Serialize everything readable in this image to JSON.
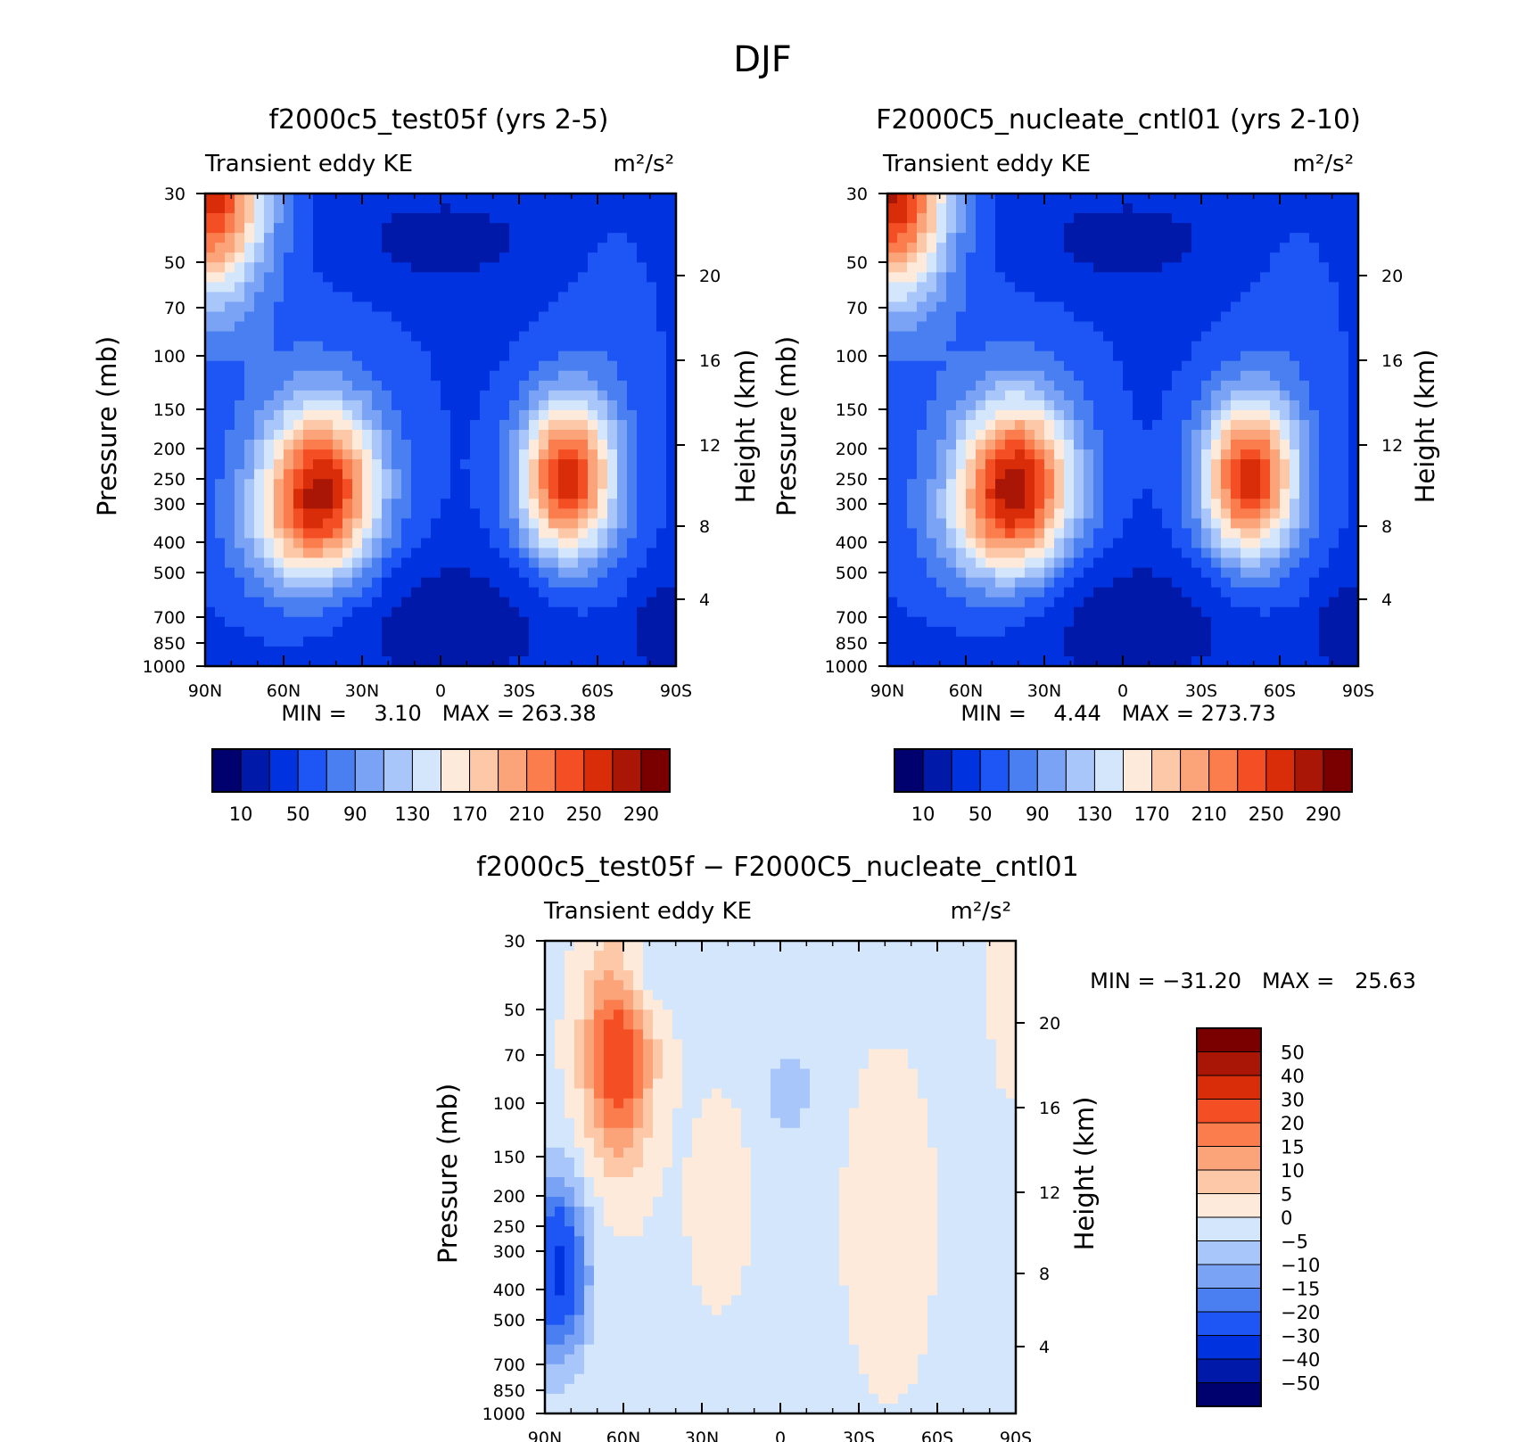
{
  "figure": {
    "title": "DJF",
    "palette_abs": [
      "#00006e",
      "#0019a8",
      "#0032e0",
      "#1e55f5",
      "#4a7ff2",
      "#7aa3f5",
      "#a9c6fb",
      "#d4e6fb",
      "#feeada",
      "#fdc8a8",
      "#fca479",
      "#fb7c4d",
      "#f44f24",
      "#d92c08",
      "#a91605",
      "#7a0000"
    ],
    "palette_diff": [
      "#00006e",
      "#0019a8",
      "#0032e0",
      "#1e55f5",
      "#4a7ff2",
      "#7aa3f5",
      "#a9c6fb",
      "#d4e6fb",
      "#feeada",
      "#fdc8a8",
      "#fca479",
      "#fb7c4d",
      "#f44f24",
      "#d92c08",
      "#a91605",
      "#7a0000"
    ]
  },
  "chart_data": [
    {
      "type": "heatmap",
      "title": "f2000c5_test05f (yrs 2-5)",
      "left_string": "Transient eddy KE",
      "units": "m²/s²",
      "ylabel": "Pressure (mb)",
      "y2label": "Height (km)",
      "x_ticks": [
        "90N",
        "60N",
        "30N",
        "0",
        "30S",
        "60S",
        "90S"
      ],
      "y_ticks": [
        "30",
        "50",
        "70",
        "100",
        "150",
        "200",
        "250",
        "300",
        "400",
        "500",
        "700",
        "850",
        "1000"
      ],
      "y2_ticks": [
        "20",
        "16",
        "12",
        "8",
        "4"
      ],
      "min_text": "MIN =    3.10   MAX = 263.38",
      "min": 3.1,
      "max": 263.38,
      "colorbar_labels": [
        "10",
        "50",
        "90",
        "130",
        "170",
        "210",
        "250",
        "290"
      ],
      "levels": [
        10,
        30,
        50,
        70,
        90,
        110,
        130,
        150,
        170,
        190,
        210,
        230,
        250,
        270,
        290
      ],
      "features": [
        {
          "kind": "strat_max_nh",
          "lat": 87,
          "p": 30,
          "value": 255
        },
        {
          "kind": "jet_max_nh",
          "lat": 45,
          "p": 270,
          "value": 250
        },
        {
          "kind": "jet_max_sh",
          "lat": -48,
          "p": 250,
          "value": 260
        },
        {
          "kind": "min_tropics",
          "lat": 0,
          "p": 850,
          "value": 5
        }
      ]
    },
    {
      "type": "heatmap",
      "title": "F2000C5_nucleate_cntl01 (yrs 2-10)",
      "left_string": "Transient eddy KE",
      "units": "m²/s²",
      "ylabel": "Pressure (mb)",
      "y2label": "Height (km)",
      "x_ticks": [
        "90N",
        "60N",
        "30N",
        "0",
        "30S",
        "60S",
        "90S"
      ],
      "y_ticks": [
        "30",
        "50",
        "70",
        "100",
        "150",
        "200",
        "250",
        "300",
        "400",
        "500",
        "700",
        "850",
        "1000"
      ],
      "y2_ticks": [
        "20",
        "16",
        "12",
        "8",
        "4"
      ],
      "min_text": "MIN =    4.44   MAX = 273.73",
      "min": 4.44,
      "max": 273.73,
      "colorbar_labels": [
        "10",
        "50",
        "90",
        "130",
        "170",
        "210",
        "250",
        "290"
      ],
      "levels": [
        10,
        30,
        50,
        70,
        90,
        110,
        130,
        150,
        170,
        190,
        210,
        230,
        250,
        270,
        290
      ],
      "features": [
        {
          "kind": "strat_max_nh",
          "lat": 87,
          "p": 30,
          "value": 265
        },
        {
          "kind": "jet_max_nh",
          "lat": 40,
          "p": 260,
          "value": 255
        },
        {
          "kind": "jet_max_sh",
          "lat": -48,
          "p": 250,
          "value": 260
        },
        {
          "kind": "min_tropics",
          "lat": 0,
          "p": 850,
          "value": 5
        }
      ]
    },
    {
      "type": "heatmap",
      "title": "f2000c5_test05f − F2000C5_nucleate_cntl01",
      "left_string": "Transient eddy KE",
      "units": "m²/s²",
      "ylabel": "Pressure (mb)",
      "y2label": "Height (km)",
      "x_ticks": [
        "90N",
        "60N",
        "30N",
        "0",
        "30S",
        "60S",
        "90S"
      ],
      "y_ticks": [
        "30",
        "50",
        "70",
        "100",
        "150",
        "200",
        "250",
        "300",
        "400",
        "500",
        "700",
        "850",
        "1000"
      ],
      "y2_ticks": [
        "20",
        "16",
        "12",
        "8",
        "4"
      ],
      "min_text": "MIN = −31.20   MAX =   25.63",
      "min": -31.2,
      "max": 25.63,
      "colorbar_labels": [
        "50",
        "40",
        "30",
        "20",
        "15",
        "10",
        "5",
        "0",
        "−5",
        "−10",
        "−15",
        "−20",
        "−30",
        "−40",
        "−50"
      ],
      "levels": [
        -50,
        -40,
        -30,
        -20,
        -15,
        -10,
        -5,
        0,
        5,
        10,
        15,
        20,
        30,
        40,
        50
      ],
      "features": [
        {
          "kind": "positive_max",
          "lat": 62,
          "p": 70,
          "value": 25
        },
        {
          "kind": "negative_min",
          "lat": 85,
          "p": 350,
          "value": -31
        }
      ]
    }
  ]
}
